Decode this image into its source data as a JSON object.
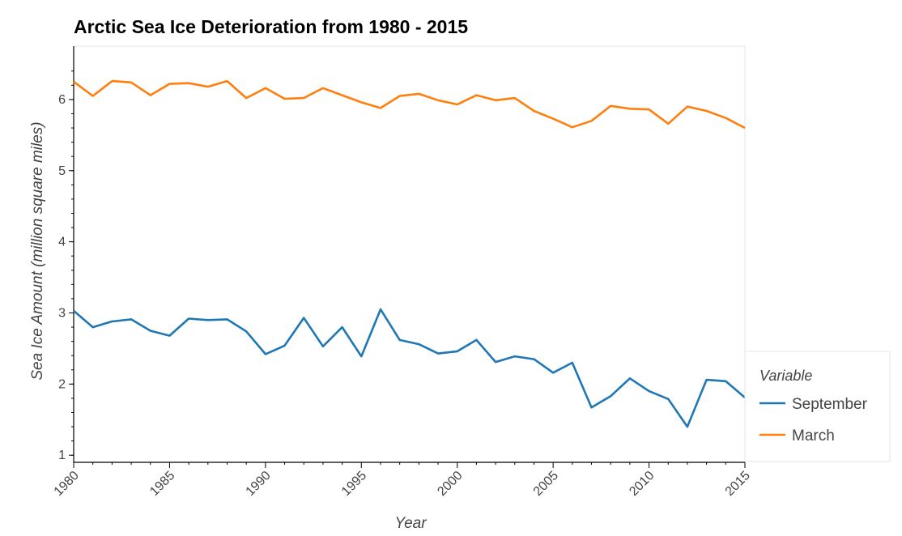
{
  "chart_data": {
    "type": "line",
    "title": "Arctic Sea Ice Deterioration from 1980 - 2015",
    "xlabel": "Year",
    "ylabel": "Sea Ice Amount (million square miles)",
    "xlim": [
      1980,
      2015
    ],
    "ylim": [
      0.9,
      6.75
    ],
    "xticks": [
      1980,
      1985,
      1990,
      1995,
      2000,
      2005,
      2010,
      2015
    ],
    "yticks": [
      1,
      2,
      3,
      4,
      5,
      6
    ],
    "grid": false,
    "legend": {
      "title": "Variable",
      "placement": "right"
    },
    "x": [
      1980,
      1981,
      1982,
      1983,
      1984,
      1985,
      1986,
      1987,
      1988,
      1989,
      1990,
      1991,
      1992,
      1993,
      1994,
      1995,
      1996,
      1997,
      1998,
      1999,
      2000,
      2001,
      2002,
      2003,
      2004,
      2005,
      2006,
      2007,
      2008,
      2009,
      2010,
      2011,
      2012,
      2013,
      2014,
      2015
    ],
    "series": [
      {
        "name": "September",
        "color": "#1f77b4",
        "values": [
          3.03,
          2.8,
          2.88,
          2.91,
          2.75,
          2.68,
          2.92,
          2.9,
          2.91,
          2.74,
          2.42,
          2.54,
          2.93,
          2.53,
          2.8,
          2.39,
          3.05,
          2.62,
          2.56,
          2.43,
          2.46,
          2.62,
          2.31,
          2.39,
          2.35,
          2.16,
          2.3,
          1.67,
          1.83,
          2.08,
          1.9,
          1.79,
          1.4,
          2.06,
          2.04,
          1.81
        ]
      },
      {
        "name": "March",
        "color": "#ff7f0e",
        "values": [
          6.25,
          6.05,
          6.26,
          6.24,
          6.06,
          6.22,
          6.23,
          6.18,
          6.26,
          6.02,
          6.16,
          6.01,
          6.02,
          6.16,
          6.06,
          5.96,
          5.88,
          6.05,
          6.08,
          5.99,
          5.93,
          6.06,
          5.99,
          6.02,
          5.84,
          5.73,
          5.61,
          5.7,
          5.91,
          5.87,
          5.86,
          5.66,
          5.9,
          5.84,
          5.74,
          5.6
        ]
      }
    ]
  }
}
